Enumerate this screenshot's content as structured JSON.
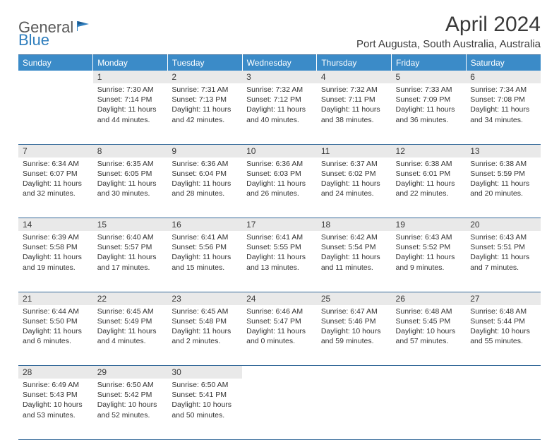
{
  "logo": {
    "general": "General",
    "blue": "Blue"
  },
  "header": {
    "title": "April 2024",
    "location": "Port Augusta, South Australia, Australia"
  },
  "colors": {
    "header_bg": "#3b8bc8",
    "header_text": "#ffffff",
    "daynum_bg": "#e9e9e9",
    "border": "#356a9a",
    "text": "#333333",
    "logo_general": "#5a5a5a",
    "logo_blue": "#2f7ebd"
  },
  "weekdays": [
    "Sunday",
    "Monday",
    "Tuesday",
    "Wednesday",
    "Thursday",
    "Friday",
    "Saturday"
  ],
  "weeks": [
    {
      "nums": [
        "",
        "1",
        "2",
        "3",
        "4",
        "5",
        "6"
      ],
      "cells": [
        "",
        "Sunrise: 7:30 AM\nSunset: 7:14 PM\nDaylight: 11 hours and 44 minutes.",
        "Sunrise: 7:31 AM\nSunset: 7:13 PM\nDaylight: 11 hours and 42 minutes.",
        "Sunrise: 7:32 AM\nSunset: 7:12 PM\nDaylight: 11 hours and 40 minutes.",
        "Sunrise: 7:32 AM\nSunset: 7:11 PM\nDaylight: 11 hours and 38 minutes.",
        "Sunrise: 7:33 AM\nSunset: 7:09 PM\nDaylight: 11 hours and 36 minutes.",
        "Sunrise: 7:34 AM\nSunset: 7:08 PM\nDaylight: 11 hours and 34 minutes."
      ]
    },
    {
      "nums": [
        "7",
        "8",
        "9",
        "10",
        "11",
        "12",
        "13"
      ],
      "cells": [
        "Sunrise: 6:34 AM\nSunset: 6:07 PM\nDaylight: 11 hours and 32 minutes.",
        "Sunrise: 6:35 AM\nSunset: 6:05 PM\nDaylight: 11 hours and 30 minutes.",
        "Sunrise: 6:36 AM\nSunset: 6:04 PM\nDaylight: 11 hours and 28 minutes.",
        "Sunrise: 6:36 AM\nSunset: 6:03 PM\nDaylight: 11 hours and 26 minutes.",
        "Sunrise: 6:37 AM\nSunset: 6:02 PM\nDaylight: 11 hours and 24 minutes.",
        "Sunrise: 6:38 AM\nSunset: 6:01 PM\nDaylight: 11 hours and 22 minutes.",
        "Sunrise: 6:38 AM\nSunset: 5:59 PM\nDaylight: 11 hours and 20 minutes."
      ]
    },
    {
      "nums": [
        "14",
        "15",
        "16",
        "17",
        "18",
        "19",
        "20"
      ],
      "cells": [
        "Sunrise: 6:39 AM\nSunset: 5:58 PM\nDaylight: 11 hours and 19 minutes.",
        "Sunrise: 6:40 AM\nSunset: 5:57 PM\nDaylight: 11 hours and 17 minutes.",
        "Sunrise: 6:41 AM\nSunset: 5:56 PM\nDaylight: 11 hours and 15 minutes.",
        "Sunrise: 6:41 AM\nSunset: 5:55 PM\nDaylight: 11 hours and 13 minutes.",
        "Sunrise: 6:42 AM\nSunset: 5:54 PM\nDaylight: 11 hours and 11 minutes.",
        "Sunrise: 6:43 AM\nSunset: 5:52 PM\nDaylight: 11 hours and 9 minutes.",
        "Sunrise: 6:43 AM\nSunset: 5:51 PM\nDaylight: 11 hours and 7 minutes."
      ]
    },
    {
      "nums": [
        "21",
        "22",
        "23",
        "24",
        "25",
        "26",
        "27"
      ],
      "cells": [
        "Sunrise: 6:44 AM\nSunset: 5:50 PM\nDaylight: 11 hours and 6 minutes.",
        "Sunrise: 6:45 AM\nSunset: 5:49 PM\nDaylight: 11 hours and 4 minutes.",
        "Sunrise: 6:45 AM\nSunset: 5:48 PM\nDaylight: 11 hours and 2 minutes.",
        "Sunrise: 6:46 AM\nSunset: 5:47 PM\nDaylight: 11 hours and 0 minutes.",
        "Sunrise: 6:47 AM\nSunset: 5:46 PM\nDaylight: 10 hours and 59 minutes.",
        "Sunrise: 6:48 AM\nSunset: 5:45 PM\nDaylight: 10 hours and 57 minutes.",
        "Sunrise: 6:48 AM\nSunset: 5:44 PM\nDaylight: 10 hours and 55 minutes."
      ]
    },
    {
      "nums": [
        "28",
        "29",
        "30",
        "",
        "",
        "",
        ""
      ],
      "cells": [
        "Sunrise: 6:49 AM\nSunset: 5:43 PM\nDaylight: 10 hours and 53 minutes.",
        "Sunrise: 6:50 AM\nSunset: 5:42 PM\nDaylight: 10 hours and 52 minutes.",
        "Sunrise: 6:50 AM\nSunset: 5:41 PM\nDaylight: 10 hours and 50 minutes.",
        "",
        "",
        "",
        ""
      ]
    }
  ]
}
